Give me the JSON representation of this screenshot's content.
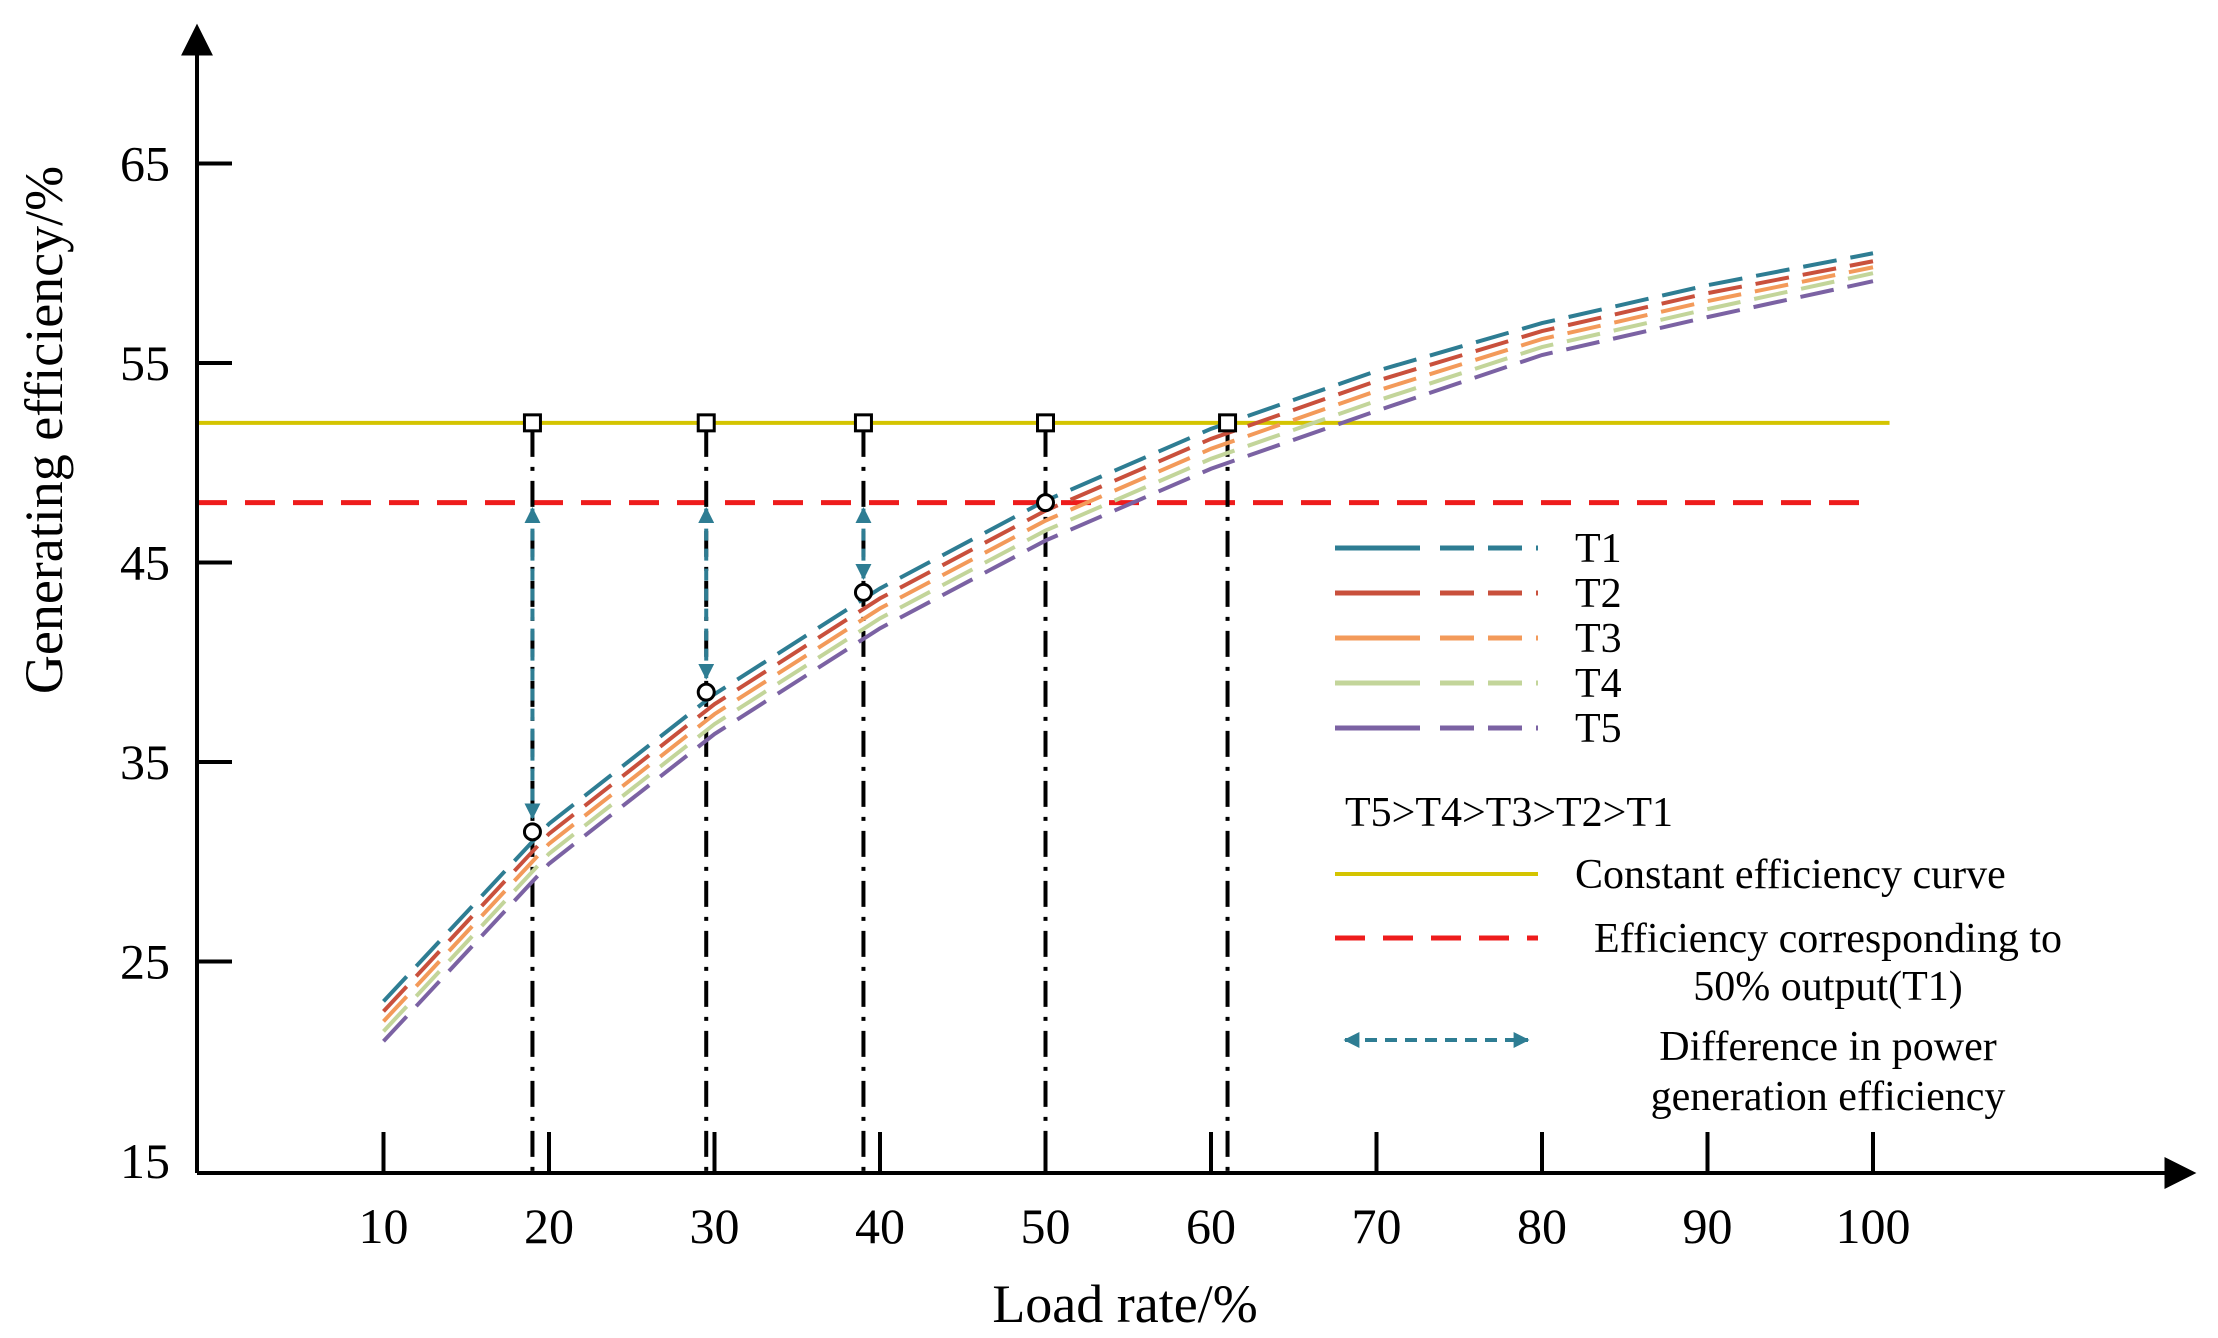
{
  "chart_data": {
    "type": "line",
    "xlabel": "Load rate/%",
    "ylabel": "Generating efficiency/%",
    "xlim": [
      0,
      110
    ],
    "ylim": [
      15,
      72
    ],
    "x_ticks": [
      "10",
      "20",
      "30",
      "40",
      "50",
      "60",
      "70",
      "80",
      "90",
      "100"
    ],
    "y_ticks": [
      "15",
      "25",
      "35",
      "45",
      "55",
      "65"
    ],
    "series": [
      {
        "name": "T1",
        "color": "#2e7d93",
        "x": [
          10,
          20,
          30,
          40,
          50,
          60,
          70,
          80,
          90,
          100
        ],
        "y": [
          23.0,
          31.9,
          38.4,
          43.7,
          48.1,
          51.7,
          54.6,
          57.0,
          58.9,
          60.5
        ]
      },
      {
        "name": "T2",
        "color": "#c9503c",
        "x": [
          10,
          20,
          30,
          40,
          50,
          60,
          70,
          80,
          90,
          100
        ],
        "y": [
          22.5,
          31.4,
          37.9,
          43.2,
          47.6,
          51.2,
          54.1,
          56.6,
          58.5,
          60.1
        ]
      },
      {
        "name": "T3",
        "color": "#f39a5a",
        "x": [
          10,
          20,
          30,
          40,
          50,
          60,
          70,
          80,
          90,
          100
        ],
        "y": [
          22.0,
          30.9,
          37.4,
          42.7,
          47.1,
          50.7,
          53.6,
          56.2,
          58.1,
          59.8
        ]
      },
      {
        "name": "T4",
        "color": "#c3d59a",
        "x": [
          10,
          20,
          30,
          40,
          50,
          60,
          70,
          80,
          90,
          100
        ],
        "y": [
          21.5,
          30.4,
          36.9,
          42.2,
          46.6,
          50.2,
          53.1,
          55.8,
          57.7,
          59.5
        ]
      },
      {
        "name": "T5",
        "color": "#7b62a3",
        "x": [
          10,
          20,
          30,
          40,
          50,
          60,
          70,
          80,
          90,
          100
        ],
        "y": [
          21.0,
          29.9,
          36.4,
          41.7,
          46.1,
          49.7,
          52.6,
          55.4,
          57.3,
          59.1
        ]
      }
    ],
    "constant_efficiency": {
      "y": 52.0,
      "x_range": [
        0,
        101
      ],
      "color": "#d4c400"
    },
    "efficiency_50_t1": {
      "y": 48.0,
      "x_range": [
        0,
        99.5
      ],
      "color": "#ee1c1c"
    },
    "difference_color": "#2e7d93",
    "squares": [
      {
        "x": 19,
        "y": 52.0
      },
      {
        "x": 29.5,
        "y": 52.0
      },
      {
        "x": 39,
        "y": 52.0
      },
      {
        "x": 50,
        "y": 52.0
      },
      {
        "x": 61,
        "y": 52.0
      }
    ],
    "circles": [
      {
        "x": 19,
        "y": 31.5
      },
      {
        "x": 29.5,
        "y": 38.5
      },
      {
        "x": 39,
        "y": 43.5
      },
      {
        "x": 50,
        "y": 48.0
      }
    ],
    "dash_dot_lines": [
      19,
      29.5,
      39,
      50,
      61
    ],
    "arrows": [
      {
        "x": 19,
        "y_from": 48.0,
        "y_to": 31.5
      },
      {
        "x": 29.5,
        "y_from": 48.0,
        "y_to": 38.5
      },
      {
        "x": 39,
        "y_from": 48.0,
        "y_to": 43.5
      }
    ],
    "legend": {
      "placement": "bottom-right",
      "series_labels": [
        "T1",
        "T2",
        "T3",
        "T4",
        "T5"
      ],
      "order_note": "T5>T4>T3>T2>T1",
      "constant_label": "Constant efficiency curve",
      "efficiency50_label_1": "Efficiency corresponding to",
      "efficiency50_label_2": "50% output(T1)",
      "difference_label_1": "Difference in power",
      "difference_label_2": "generation efficiency"
    }
  }
}
